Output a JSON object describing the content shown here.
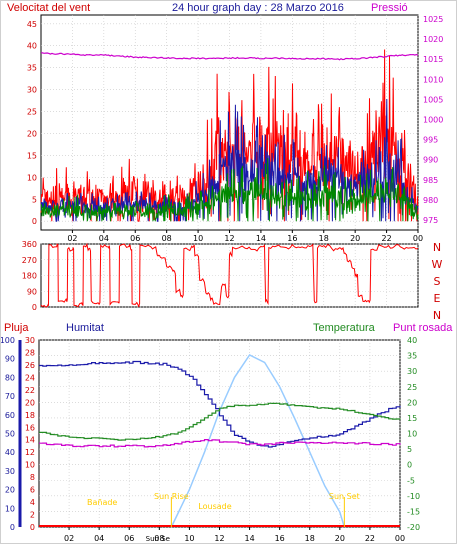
{
  "header": {
    "left": "Velocitat del vent",
    "center": "24 hour graph day : 28 Marzo 2016",
    "right": "Pressió"
  },
  "bottom_labels": {
    "rain": "Pluja",
    "humidity": "Humitat",
    "temperature": "Temperatura",
    "dewpoint": "Punt rosada"
  },
  "colors": {
    "gust": "#ff0000",
    "wind": "#1a1aaa",
    "avg": "#008800",
    "pressure": "#cc00cc",
    "direction": "#ff0000",
    "humidity": "#1a1aaa",
    "temperature": "#228B22",
    "dewpoint": "#cc00cc",
    "solar": "#99ccff",
    "sun": "#ffcc00",
    "rain": "#ff0000"
  },
  "x_ticks": [
    "02",
    "04",
    "06",
    "08",
    "10",
    "12",
    "14",
    "16",
    "18",
    "20",
    "22",
    "00"
  ],
  "chart_data": [
    {
      "type": "line",
      "name": "wind",
      "y_left_ticks": [
        0,
        5,
        10,
        15,
        20,
        25,
        30,
        35,
        40,
        45
      ],
      "y_right_ticks": [
        975,
        980,
        985,
        990,
        995,
        1000,
        1005,
        1010,
        1015,
        1020,
        1025
      ],
      "ylim_left": [
        -2,
        47
      ],
      "ylim_right": [
        972.5,
        1026
      ],
      "x_range": [
        0,
        24
      ],
      "gust_envelope": [
        [
          0,
          5
        ],
        [
          1,
          6
        ],
        [
          2,
          7
        ],
        [
          3,
          6
        ],
        [
          4,
          6
        ],
        [
          5,
          7
        ],
        [
          6,
          8
        ],
        [
          7,
          6
        ],
        [
          8,
          5
        ],
        [
          9,
          6
        ],
        [
          10,
          9
        ],
        [
          11,
          17
        ],
        [
          12,
          30
        ],
        [
          13,
          20
        ],
        [
          14,
          24
        ],
        [
          15,
          22
        ],
        [
          16,
          19
        ],
        [
          17,
          17
        ],
        [
          18,
          21
        ],
        [
          19,
          19
        ],
        [
          20,
          15
        ],
        [
          21,
          21
        ],
        [
          22,
          28
        ],
        [
          23,
          18
        ],
        [
          24,
          4
        ]
      ],
      "wind_envelope": [
        [
          0,
          4
        ],
        [
          1,
          4
        ],
        [
          2,
          5
        ],
        [
          3,
          4
        ],
        [
          4,
          4
        ],
        [
          5,
          5
        ],
        [
          6,
          5
        ],
        [
          7,
          4
        ],
        [
          8,
          4
        ],
        [
          9,
          4
        ],
        [
          10,
          6
        ],
        [
          11,
          11
        ],
        [
          12,
          20
        ],
        [
          13,
          14
        ],
        [
          14,
          16
        ],
        [
          15,
          15
        ],
        [
          16,
          13
        ],
        [
          17,
          12
        ],
        [
          18,
          14
        ],
        [
          19,
          13
        ],
        [
          20,
          10
        ],
        [
          21,
          14
        ],
        [
          22,
          19
        ],
        [
          23,
          12
        ],
        [
          24,
          2
        ]
      ],
      "avg_envelope": [
        [
          0,
          3
        ],
        [
          1,
          3
        ],
        [
          2,
          3
        ],
        [
          3,
          3
        ],
        [
          4,
          3
        ],
        [
          5,
          3
        ],
        [
          6,
          3
        ],
        [
          7,
          3
        ],
        [
          8,
          3
        ],
        [
          9,
          3
        ],
        [
          10,
          4
        ],
        [
          11,
          6
        ],
        [
          12,
          9
        ],
        [
          13,
          8
        ],
        [
          14,
          9
        ],
        [
          15,
          8
        ],
        [
          16,
          7
        ],
        [
          17,
          7
        ],
        [
          18,
          8
        ],
        [
          19,
          7
        ],
        [
          20,
          6
        ],
        [
          21,
          8
        ],
        [
          22,
          10
        ],
        [
          23,
          7
        ],
        [
          24,
          1
        ]
      ],
      "pressure": [
        [
          0,
          1016.5
        ],
        [
          1,
          1016.3
        ],
        [
          2,
          1016.3
        ],
        [
          3,
          1016
        ],
        [
          4,
          1016
        ],
        [
          5,
          1015.8
        ],
        [
          6,
          1015.5
        ],
        [
          7,
          1015.4
        ],
        [
          8,
          1015.3
        ],
        [
          9,
          1015.2
        ],
        [
          10,
          1015.2
        ],
        [
          11,
          1015.2
        ],
        [
          12,
          1015.3
        ],
        [
          13,
          1015.3
        ],
        [
          14,
          1015.2
        ],
        [
          15,
          1015.3
        ],
        [
          16,
          1015.2
        ],
        [
          17,
          1015.1
        ],
        [
          18,
          1015.1
        ],
        [
          19,
          1015
        ],
        [
          20,
          1015.1
        ],
        [
          21,
          1015.4
        ],
        [
          22,
          1015.7
        ],
        [
          23,
          1016
        ],
        [
          24,
          1016.1
        ]
      ]
    },
    {
      "type": "line",
      "name": "direction",
      "y_ticks": [
        0,
        90,
        180,
        270,
        360
      ],
      "compass": [
        "N",
        "W",
        "S",
        "E",
        "N"
      ],
      "ylim": [
        0,
        360
      ],
      "x_range": [
        0,
        24
      ],
      "segments": [
        [
          [
            0,
            5
          ],
          [
            0.4,
            5
          ],
          [
            0.5,
            350
          ],
          [
            1.0,
            350
          ],
          [
            1.1,
            30
          ],
          [
            1.6,
            40
          ],
          [
            1.7,
            330
          ],
          [
            2.0,
            330
          ],
          [
            2.1,
            10
          ],
          [
            2.6,
            20
          ],
          [
            2.7,
            350
          ],
          [
            3.0,
            330
          ],
          [
            3.2,
            30
          ],
          [
            3.6,
            20
          ],
          [
            3.8,
            350
          ],
          [
            4.3,
            340
          ],
          [
            4.4,
            20
          ],
          [
            4.9,
            30
          ],
          [
            5.0,
            350
          ],
          [
            5.6,
            350
          ],
          [
            5.7,
            330
          ],
          [
            5.8,
            20
          ],
          [
            6.2,
            10
          ],
          [
            6.3,
            350
          ],
          [
            7.0,
            340
          ],
          [
            7.4,
            300
          ],
          [
            7.6,
            280
          ],
          [
            8.0,
            230
          ],
          [
            8.4,
            200
          ],
          [
            8.6,
            90
          ],
          [
            8.9,
            60
          ],
          [
            9.1,
            330
          ],
          [
            9.6,
            350
          ],
          [
            9.8,
            290
          ],
          [
            10.1,
            150
          ],
          [
            10.5,
            80
          ],
          [
            10.8,
            40
          ],
          [
            11.0,
            20
          ],
          [
            11.5,
            120
          ],
          [
            11.8,
            60
          ],
          [
            12.0,
            300
          ],
          [
            12.2,
            340
          ],
          [
            13.0,
            340
          ],
          [
            13.5,
            330
          ],
          [
            14.0,
            350
          ],
          [
            14.3,
            30
          ],
          [
            14.5,
            340
          ],
          [
            15.0,
            345
          ],
          [
            15.5,
            340
          ],
          [
            16.0,
            350
          ],
          [
            16.5,
            345
          ],
          [
            17.0,
            350
          ],
          [
            17.4,
            30
          ],
          [
            17.6,
            340
          ],
          [
            18.0,
            350
          ],
          [
            18.5,
            330
          ],
          [
            19.0,
            340
          ],
          [
            19.3,
            310
          ],
          [
            19.5,
            260
          ],
          [
            19.8,
            220
          ],
          [
            20.0,
            180
          ],
          [
            20.2,
            60
          ],
          [
            20.5,
            30
          ],
          [
            20.8,
            30
          ],
          [
            21.0,
            330
          ],
          [
            21.5,
            350
          ],
          [
            22.0,
            340
          ],
          [
            22.5,
            350
          ],
          [
            23.0,
            340
          ],
          [
            23.5,
            340
          ],
          [
            24,
            330
          ]
        ]
      ]
    },
    {
      "type": "line",
      "name": "weather",
      "y_rain_ticks": [
        0,
        10,
        20,
        30,
        40,
        50,
        60,
        70,
        80,
        90,
        100
      ],
      "y_hum_ticks": [
        0,
        2,
        4,
        6,
        8,
        10,
        12,
        14,
        16,
        18,
        20,
        22,
        24,
        26,
        28,
        30
      ],
      "y_temp_ticks": [
        -20,
        -15,
        -10,
        -5,
        0,
        5,
        10,
        15,
        20,
        25,
        30,
        35,
        40
      ],
      "x_range": [
        0,
        24
      ],
      "humidity": [
        [
          0,
          86
        ],
        [
          1,
          86
        ],
        [
          2,
          87
        ],
        [
          3,
          87
        ],
        [
          4,
          88
        ],
        [
          5,
          88
        ],
        [
          6,
          88
        ],
        [
          7,
          88
        ],
        [
          8,
          87
        ],
        [
          8.5,
          87
        ],
        [
          9,
          85
        ],
        [
          10,
          81
        ],
        [
          11,
          71
        ],
        [
          12,
          60
        ],
        [
          13,
          49
        ],
        [
          14,
          45
        ],
        [
          15,
          43
        ],
        [
          16,
          44
        ],
        [
          17,
          46
        ],
        [
          18,
          48
        ],
        [
          19,
          48
        ],
        [
          20,
          50
        ],
        [
          21,
          54
        ],
        [
          22,
          58
        ],
        [
          23,
          62
        ],
        [
          24,
          65
        ]
      ],
      "temperature": [
        [
          0,
          10.5
        ],
        [
          1,
          9.5
        ],
        [
          2,
          9
        ],
        [
          3,
          8.5
        ],
        [
          4,
          8.5
        ],
        [
          5,
          8
        ],
        [
          6,
          8
        ],
        [
          7,
          8.5
        ],
        [
          8,
          9
        ],
        [
          9,
          10
        ],
        [
          10,
          12
        ],
        [
          11,
          15
        ],
        [
          12,
          18
        ],
        [
          13,
          19
        ],
        [
          14,
          19
        ],
        [
          15,
          19.5
        ],
        [
          16,
          19.5
        ],
        [
          17,
          19
        ],
        [
          18,
          18.5
        ],
        [
          19,
          18
        ],
        [
          20,
          18
        ],
        [
          21,
          17
        ],
        [
          22,
          16
        ],
        [
          23,
          15
        ],
        [
          24,
          14.5
        ]
      ],
      "dewpoint": [
        [
          0,
          7
        ],
        [
          1,
          6.5
        ],
        [
          2,
          6
        ],
        [
          3,
          6
        ],
        [
          4,
          6
        ],
        [
          5,
          6
        ],
        [
          6,
          6
        ],
        [
          7,
          6
        ],
        [
          8,
          6
        ],
        [
          9,
          6.5
        ],
        [
          10,
          7.5
        ],
        [
          11,
          8
        ],
        [
          12,
          7.5
        ],
        [
          13,
          7
        ],
        [
          14,
          6.5
        ],
        [
          15,
          6.5
        ],
        [
          16,
          7
        ],
        [
          17,
          7
        ],
        [
          18,
          7
        ],
        [
          19,
          7
        ],
        [
          20,
          7
        ],
        [
          21,
          6.8
        ],
        [
          22,
          6.8
        ],
        [
          23,
          6.5
        ],
        [
          24,
          6.5
        ]
      ],
      "solar": [
        [
          8.8,
          0
        ],
        [
          10,
          20
        ],
        [
          11,
          40
        ],
        [
          12,
          62
        ],
        [
          13,
          80
        ],
        [
          14,
          92
        ],
        [
          15,
          88
        ],
        [
          16,
          75
        ],
        [
          17,
          58
        ],
        [
          18,
          40
        ],
        [
          19,
          22
        ],
        [
          20,
          8
        ],
        [
          20.3,
          0
        ]
      ],
      "rain_total": 0,
      "sun_events": [
        {
          "label": "Sun Rise",
          "x": 8.8
        },
        {
          "label": "Sun Set",
          "x": 20.3
        }
      ],
      "sun_marks": [
        {
          "label": "Sun Rise",
          "x": 8.8
        },
        {
          "label": "Lousade",
          "x": 11.7
        },
        {
          "label": "Sun Set",
          "x": 20.3
        },
        {
          "label": "Sun Se",
          "x": 7.9
        },
        {
          "label": "Bañade",
          "x": 4.2
        }
      ]
    }
  ]
}
